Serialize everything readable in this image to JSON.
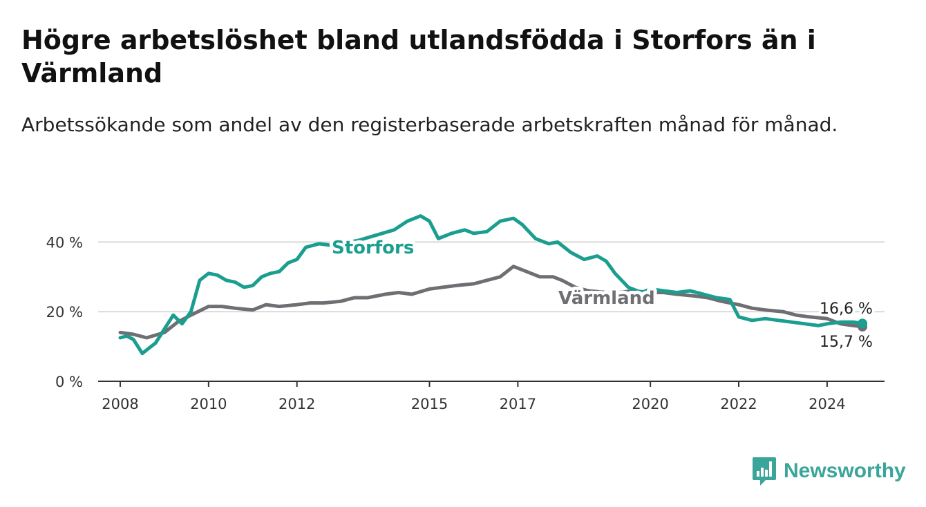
{
  "title": "Högre arbetslöshet bland utlandsfödda i Storfors än i Värmland",
  "subtitle": "Arbetssökande som andel av den registerbaserade arbetskraften månad för månad.",
  "brand": {
    "name": "Newsworthy",
    "color": "#3aa59a"
  },
  "chart_data": {
    "type": "line",
    "x_axis": {
      "range": [
        2007.5,
        2025.3
      ],
      "ticks": [
        2008,
        2010,
        2012,
        2015,
        2017,
        2020,
        2022,
        2024
      ],
      "tick_labels": [
        "2008",
        "2010",
        "2012",
        "2015",
        "2017",
        "2020",
        "2022",
        "2024"
      ]
    },
    "y_axis": {
      "range": [
        0,
        50
      ],
      "ticks": [
        0,
        20,
        40
      ],
      "tick_labels": [
        "0 %",
        "20 %",
        "40 %"
      ],
      "grid": true
    },
    "series": [
      {
        "name": "Storfors",
        "color": "#1a9e8f",
        "end_label": "16,6 %",
        "x": [
          2008.0,
          2008.15,
          2008.3,
          2008.5,
          2008.65,
          2008.8,
          2009.0,
          2009.2,
          2009.4,
          2009.6,
          2009.8,
          2010.0,
          2010.2,
          2010.4,
          2010.6,
          2010.8,
          2011.0,
          2011.2,
          2011.4,
          2011.6,
          2011.8,
          2012.0,
          2012.2,
          2012.5,
          2012.8,
          2013.0,
          2013.4,
          2013.8,
          2014.2,
          2014.5,
          2014.8,
          2015.0,
          2015.2,
          2015.5,
          2015.8,
          2016.0,
          2016.3,
          2016.6,
          2016.9,
          2017.1,
          2017.4,
          2017.7,
          2017.9,
          2018.2,
          2018.5,
          2018.8,
          2019.0,
          2019.2,
          2019.5,
          2019.8,
          2020.0,
          2020.3,
          2020.6,
          2020.9,
          2021.2,
          2021.5,
          2021.8,
          2022.0,
          2022.3,
          2022.6,
          2022.9,
          2023.2,
          2023.5,
          2023.8,
          2024.0,
          2024.3,
          2024.6,
          2024.8
        ],
        "values": [
          12.5,
          13.0,
          12.0,
          8.0,
          9.5,
          11.0,
          15.0,
          19.0,
          16.5,
          20.0,
          29.0,
          31.0,
          30.5,
          29.0,
          28.5,
          27.0,
          27.5,
          30.0,
          31.0,
          31.5,
          34.0,
          35.0,
          38.5,
          39.5,
          39.0,
          39.5,
          40.5,
          42.0,
          43.5,
          46.0,
          47.5,
          46.0,
          41.0,
          42.5,
          43.5,
          42.5,
          43.0,
          46.0,
          46.8,
          45.0,
          41.0,
          39.5,
          40.0,
          37.0,
          35.0,
          36.0,
          34.5,
          31.0,
          27.0,
          25.5,
          26.5,
          26.0,
          25.5,
          26.0,
          25.0,
          24.0,
          23.5,
          18.5,
          17.5,
          18.0,
          17.5,
          17.0,
          16.5,
          16.0,
          16.5,
          17.0,
          17.0,
          16.6
        ]
      },
      {
        "name": "Värmland",
        "color": "#6e6e73",
        "end_label": "15,7 %",
        "x": [
          2008.0,
          2008.3,
          2008.6,
          2009.0,
          2009.3,
          2009.6,
          2010.0,
          2010.3,
          2010.6,
          2011.0,
          2011.3,
          2011.6,
          2012.0,
          2012.3,
          2012.6,
          2013.0,
          2013.3,
          2013.6,
          2014.0,
          2014.3,
          2014.6,
          2015.0,
          2015.3,
          2015.6,
          2016.0,
          2016.3,
          2016.6,
          2016.9,
          2017.2,
          2017.5,
          2017.8,
          2018.0,
          2018.3,
          2018.6,
          2019.0,
          2019.3,
          2019.6,
          2020.0,
          2020.3,
          2020.6,
          2021.0,
          2021.3,
          2021.6,
          2022.0,
          2022.3,
          2022.6,
          2023.0,
          2023.3,
          2023.6,
          2024.0,
          2024.3,
          2024.6,
          2024.8
        ],
        "values": [
          14.0,
          13.5,
          12.5,
          14.0,
          17.0,
          19.0,
          21.5,
          21.5,
          21.0,
          20.5,
          22.0,
          21.5,
          22.0,
          22.5,
          22.5,
          23.0,
          24.0,
          24.0,
          25.0,
          25.5,
          25.0,
          26.5,
          27.0,
          27.5,
          28.0,
          29.0,
          30.0,
          33.0,
          31.5,
          30.0,
          30.0,
          29.0,
          27.0,
          26.0,
          25.5,
          25.5,
          26.0,
          25.5,
          25.5,
          25.0,
          24.5,
          24.0,
          23.0,
          22.0,
          21.0,
          20.5,
          20.0,
          19.0,
          18.5,
          18.0,
          16.5,
          16.0,
          15.7
        ]
      }
    ]
  }
}
